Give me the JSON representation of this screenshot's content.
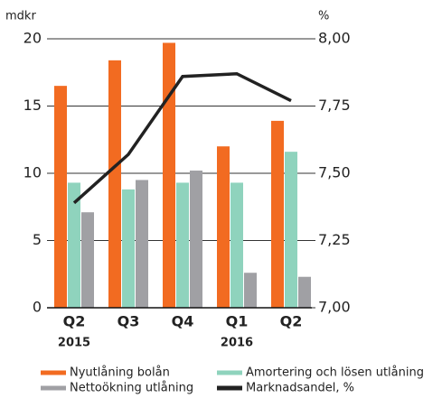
{
  "chart_data": {
    "type": "bar",
    "y_label": "mdkr",
    "y2_label": "%",
    "categories": [
      "Q2",
      "Q3",
      "Q4",
      "Q1",
      "Q2"
    ],
    "category_groups": [
      "2015",
      null,
      null,
      "2016",
      null
    ],
    "series": [
      {
        "name": "Nyutlåning bolån",
        "color": "#f26b21",
        "values": [
          16.5,
          18.4,
          19.7,
          12.0,
          13.9
        ]
      },
      {
        "name": "Amortering och lösen utlåning",
        "color": "#8fd3bd",
        "values": [
          9.3,
          8.8,
          9.3,
          9.3,
          11.6
        ]
      },
      {
        "name": "Nettoökning utlåning",
        "color": "#a0a0a4",
        "values": [
          7.1,
          9.5,
          10.2,
          2.6,
          2.3
        ]
      },
      {
        "name": "Marknadsandel, %",
        "color": "#222222",
        "type": "line",
        "axis": "y2",
        "values": [
          7.39,
          7.57,
          7.86,
          7.87,
          7.77
        ]
      }
    ],
    "ylim": [
      0,
      20
    ],
    "yticks": [
      0,
      5,
      10,
      15,
      20
    ],
    "y2lim": [
      7,
      8
    ],
    "y2ticks": [
      {
        "value": 7,
        "label": "7,00"
      },
      {
        "value": 7.25,
        "label": "7,25"
      },
      {
        "value": 7.5,
        "label": "7,50"
      },
      {
        "value": 7.75,
        "label": "7,75"
      },
      {
        "value": 8,
        "label": "8,00"
      }
    ],
    "grid": true
  }
}
